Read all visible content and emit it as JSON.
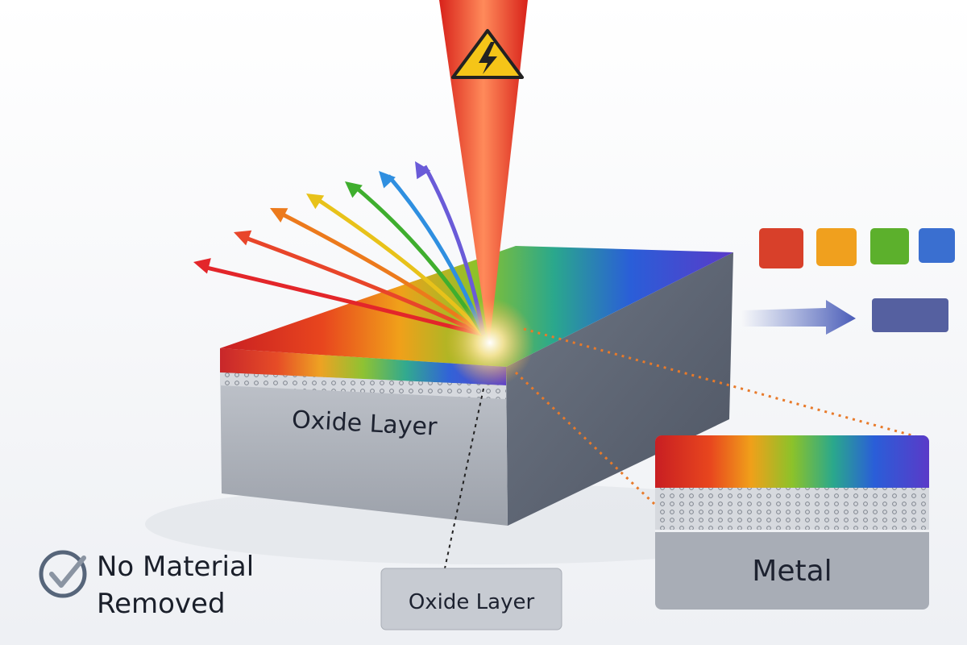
{
  "block": {
    "label": "Oxide Layer"
  },
  "callout": {
    "label": "Oxide Layer"
  },
  "inset": {
    "label": "Metal"
  },
  "claim": {
    "line1": "No Material",
    "line2": "Removed",
    "icon": "check-circle-icon"
  },
  "beam": {
    "icon": "high-voltage-warning-icon",
    "color": "#e8321e"
  },
  "rays": [
    "#e3262a",
    "#e8452a",
    "#ec7a1c",
    "#e8c21a",
    "#3fae2e",
    "#2f8fe0",
    "#6a5bd8"
  ],
  "swatches": [
    "#d8402a",
    "#f0a01e",
    "#5cb02c",
    "#3a6fd0"
  ],
  "result_swatch": "#5560a0",
  "colors": {
    "guide_line": "#e87a2a",
    "metal": "#a8adb6"
  }
}
